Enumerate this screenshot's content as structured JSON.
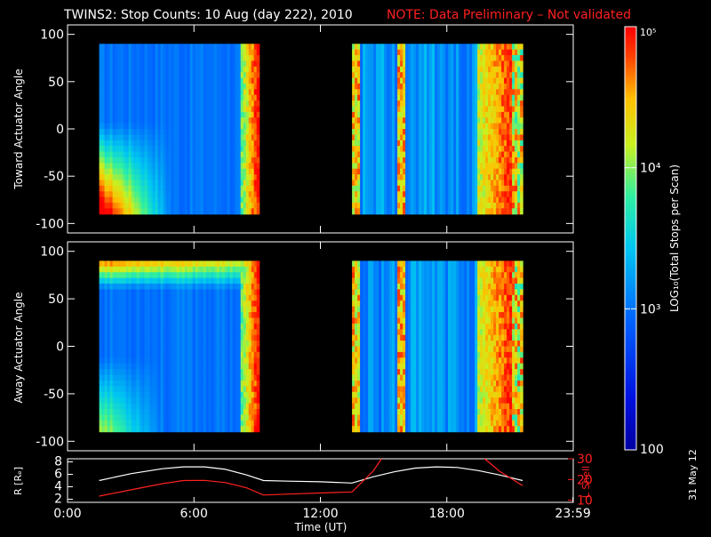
{
  "header": {
    "title": "TWINS2: Stop Counts: 10 Aug (day 222), 2010",
    "note": "NOTE: Data Preliminary – Not validated"
  },
  "colors": {
    "background": "#000000",
    "axes": "#ffffff",
    "note": "#ff2020",
    "lshell": "#ff2020",
    "radius": "#ffffff"
  },
  "chart_data": [
    {
      "id": "toward",
      "type": "heatmap",
      "ylabel": "Toward Actuator Angle",
      "ylim": [
        -110,
        110
      ],
      "yticks": [
        -100,
        -50,
        0,
        50,
        100
      ],
      "xlim": [
        0,
        24
      ],
      "data_windows": [
        {
          "start": 1.5,
          "end": 9.1,
          "angle_range": [
            -90,
            90
          ]
        },
        {
          "start": 13.5,
          "end": 21.6,
          "angle_range": [
            -90,
            90
          ]
        }
      ]
    },
    {
      "id": "away",
      "type": "heatmap",
      "ylabel": "Away Actuator Angle",
      "ylim": [
        -110,
        110
      ],
      "yticks": [
        -100,
        -50,
        0,
        50,
        100
      ],
      "xlim": [
        0,
        24
      ],
      "data_windows": [
        {
          "start": 1.5,
          "end": 9.1,
          "angle_range": [
            -90,
            90
          ]
        },
        {
          "start": 13.5,
          "end": 21.6,
          "angle_range": [
            -90,
            90
          ]
        }
      ]
    },
    {
      "id": "orbit",
      "type": "line",
      "ylabel": "R [Rₑ]",
      "ylabel_right": "L Shell",
      "ylim": [
        1.5,
        8.5
      ],
      "yticks": [
        2,
        4,
        6,
        8
      ],
      "ylim_right": [
        9,
        30
      ],
      "yticks_right": [
        10,
        20,
        30
      ],
      "xlim": [
        0,
        24
      ],
      "xlabel": "Time (UT)",
      "xticks": [
        0,
        6,
        12,
        18,
        23.983
      ],
      "xtick_labels": [
        "0:00",
        "6:00",
        "12:00",
        "18:00",
        "23:59"
      ],
      "series": [
        {
          "id": "radius",
          "x": [
            1.5,
            3,
            4.5,
            5.5,
            6.5,
            7.5,
            8.5,
            9.3,
            10.5,
            12,
            13.5,
            14.5,
            15.5,
            16.5,
            17.5,
            18.5,
            19.5,
            20.5,
            21.6
          ],
          "values": [
            5.0,
            6.1,
            6.9,
            7.2,
            7.2,
            6.8,
            5.9,
            5.0,
            4.9,
            4.8,
            4.6,
            5.6,
            6.4,
            7.0,
            7.2,
            7.1,
            6.6,
            5.9,
            5.0
          ]
        },
        {
          "id": "lshell",
          "x": [
            1.5,
            3,
            4.5,
            5.5,
            6.5,
            7.5,
            8.5,
            9.3,
            10.5,
            12,
            13.5,
            14.5,
            14.9
          ],
          "values": [
            12,
            15,
            18,
            19.5,
            19.6,
            18.5,
            16,
            12.5,
            13,
            13.5,
            14,
            24,
            30
          ]
        },
        {
          "id": "lshell-2",
          "x": [
            19.8,
            20.5,
            21.6
          ],
          "values": [
            30,
            24,
            17
          ]
        }
      ]
    }
  ],
  "colorbar": {
    "label": "LOG₁₀(Total Stops per Scan)",
    "scale": "log",
    "range": [
      100,
      100000
    ],
    "tick_labels": [
      {
        "value": 100,
        "text": "100"
      },
      {
        "value": 1000,
        "text": "10³"
      },
      {
        "value": 10000,
        "text": "10⁴"
      },
      {
        "value": 100000,
        "text": "10⁵"
      }
    ]
  },
  "footer": {
    "date_stamp": "31 May 12"
  }
}
